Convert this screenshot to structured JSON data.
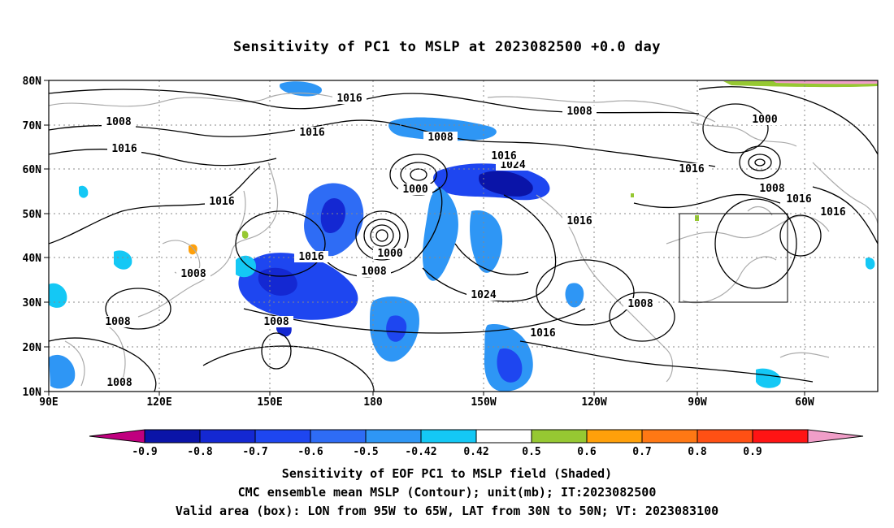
{
  "title": "Sensitivity of PC1 to MSLP at 2023082500 +0.0 day",
  "lat_labels": [
    "80N",
    "70N",
    "60N",
    "50N",
    "40N",
    "30N",
    "20N",
    "10N"
  ],
  "lon_labels": [
    "90E",
    "120E",
    "150E",
    "180",
    "150W",
    "120W",
    "90W",
    "60W"
  ],
  "colorbar": {
    "ticks": [
      "-0.9",
      "-0.8",
      "-0.7",
      "-0.6",
      "-0.5",
      "-0.42",
      "0.42",
      "0.5",
      "0.6",
      "0.7",
      "0.8",
      "0.9"
    ],
    "colors": [
      "#c0007f",
      "#0a14a8",
      "#1428d2",
      "#1e46f0",
      "#2e6cf5",
      "#2e96f5",
      "#14c8f5",
      "#ffffff",
      "#96c832",
      "#ffa00a",
      "#ff7814",
      "#ff5014",
      "#ff1414",
      "#f09ec8"
    ]
  },
  "contour_labels": [
    "1016",
    "1008",
    "1016",
    "1016",
    "1008",
    "1016",
    "1000",
    "1008",
    "1016",
    "1024",
    "1000",
    "1016",
    "1008",
    "1000",
    "1008",
    "1016",
    "1016",
    "1016",
    "1016",
    "1008",
    "1024",
    "1008",
    "1008",
    "1016",
    "1008",
    "1008"
  ],
  "captions": [
    "Sensitivity of EOF PC1 to MSLP field (Shaded)",
    "CMC ensemble mean MSLP (Contour); unit(mb); IT:2023082500",
    "Valid area (box): LON from 95W to 65W, LAT from 30N to 50N; VT: 2023083100"
  ],
  "valid_box": {
    "lon_west": "95W",
    "lon_east": "65W",
    "lat_south": "30N",
    "lat_north": "50N"
  }
}
